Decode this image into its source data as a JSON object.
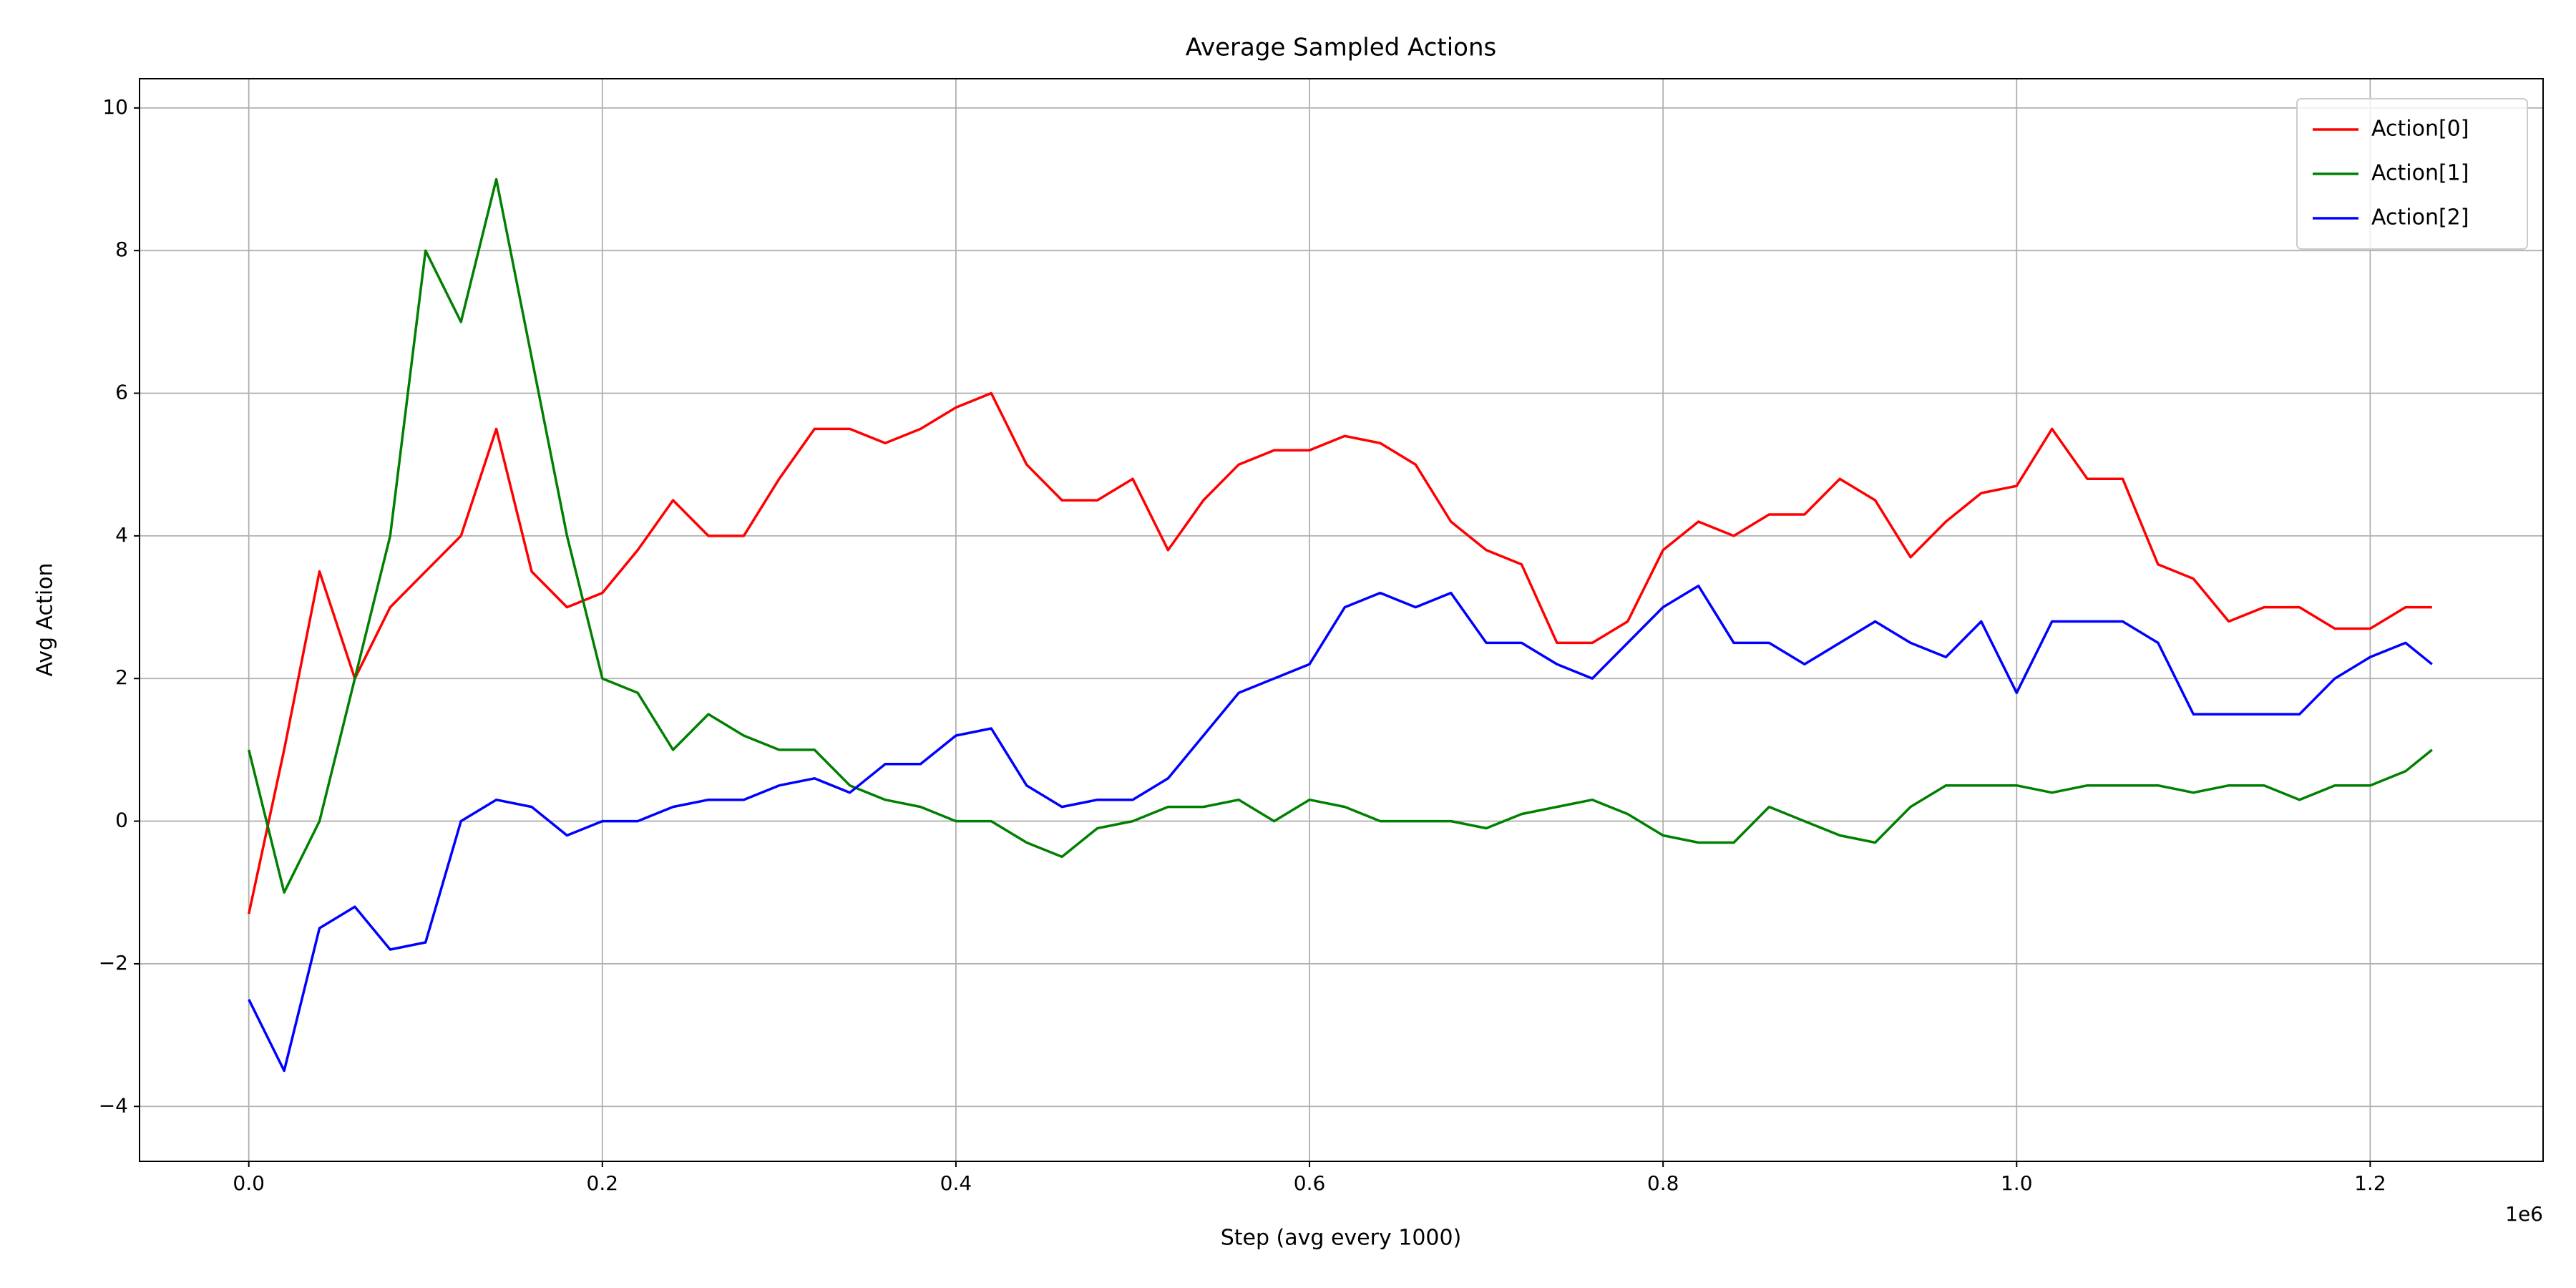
{
  "chart_data": {
    "type": "line",
    "title": "Average Sampled Actions",
    "x_label": "Step (avg every 1000)",
    "y_label": "Avg Action",
    "x_offset_text": "1e6",
    "x": [
      0,
      20000,
      40000,
      60000,
      80000,
      100000,
      120000,
      140000,
      160000,
      180000,
      200000,
      220000,
      240000,
      260000,
      280000,
      300000,
      320000,
      340000,
      360000,
      380000,
      400000,
      420000,
      440000,
      460000,
      480000,
      500000,
      520000,
      540000,
      560000,
      580000,
      600000,
      620000,
      640000,
      660000,
      680000,
      700000,
      720000,
      740000,
      760000,
      780000,
      800000,
      820000,
      840000,
      860000,
      880000,
      900000,
      920000,
      940000,
      960000,
      980000,
      1000000,
      1020000,
      1040000,
      1060000,
      1080000,
      1100000,
      1120000,
      1140000,
      1160000,
      1180000,
      1200000,
      1220000,
      1235000
    ],
    "series": [
      {
        "name": "Action[0]",
        "color": "#ff0000",
        "values": [
          -1.3,
          1.0,
          3.5,
          2.0,
          3.0,
          3.5,
          4.0,
          5.5,
          3.5,
          3.0,
          3.2,
          3.8,
          4.5,
          4.0,
          4.0,
          4.8,
          5.5,
          5.5,
          5.3,
          5.5,
          5.8,
          6.0,
          5.0,
          4.5,
          4.5,
          4.8,
          3.8,
          4.5,
          5.0,
          5.2,
          5.2,
          5.4,
          5.3,
          5.0,
          4.2,
          3.8,
          3.6,
          2.5,
          2.5,
          2.8,
          3.8,
          4.2,
          4.0,
          4.3,
          4.3,
          4.8,
          4.5,
          3.7,
          4.2,
          4.6,
          4.7,
          5.5,
          4.8,
          4.8,
          3.6,
          3.4,
          2.8,
          3.0,
          3.0,
          2.7,
          2.7,
          3.0,
          3.0
        ]
      },
      {
        "name": "Action[1]",
        "color": "#008000",
        "values": [
          1.0,
          -1.0,
          0.0,
          2.0,
          4.0,
          8.0,
          7.0,
          9.0,
          6.5,
          4.0,
          2.0,
          1.8,
          1.0,
          1.5,
          1.2,
          1.0,
          1.0,
          0.5,
          0.3,
          0.2,
          0.0,
          0.0,
          -0.3,
          -0.5,
          -0.1,
          0.0,
          0.2,
          0.2,
          0.3,
          0.0,
          0.3,
          0.2,
          0.0,
          0.0,
          0.0,
          -0.1,
          0.1,
          0.2,
          0.3,
          0.1,
          -0.2,
          -0.3,
          -0.3,
          0.2,
          0.0,
          -0.2,
          -0.3,
          0.2,
          0.5,
          0.5,
          0.5,
          0.4,
          0.5,
          0.5,
          0.5,
          0.4,
          0.5,
          0.5,
          0.3,
          0.5,
          0.5,
          0.7,
          1.0
        ]
      },
      {
        "name": "Action[2]",
        "color": "#0000ff",
        "values": [
          -2.5,
          -3.5,
          -1.5,
          -1.2,
          -1.8,
          -1.7,
          0.0,
          0.3,
          0.2,
          -0.2,
          0.0,
          0.0,
          0.2,
          0.3,
          0.3,
          0.5,
          0.6,
          0.4,
          0.8,
          0.8,
          1.2,
          1.3,
          0.5,
          0.2,
          0.3,
          0.3,
          0.6,
          1.2,
          1.8,
          2.0,
          2.2,
          3.0,
          3.2,
          3.0,
          3.2,
          2.5,
          2.5,
          2.2,
          2.0,
          2.5,
          3.0,
          3.3,
          2.5,
          2.5,
          2.2,
          2.5,
          2.8,
          2.5,
          2.3,
          2.8,
          1.8,
          2.8,
          2.8,
          2.8,
          2.5,
          1.5,
          1.5,
          1.5,
          1.5,
          2.0,
          2.3,
          2.5,
          2.2
        ]
      }
    ],
    "xlim": [
      -61800,
      1297800
    ],
    "ylim": [
      -4.77,
      10.41
    ],
    "xticks": [
      {
        "value": 0,
        "label": "0.0"
      },
      {
        "value": 200000,
        "label": "0.2"
      },
      {
        "value": 400000,
        "label": "0.4"
      },
      {
        "value": 600000,
        "label": "0.6"
      },
      {
        "value": 800000,
        "label": "0.8"
      },
      {
        "value": 1000000,
        "label": "1.0"
      },
      {
        "value": 1200000,
        "label": "1.2"
      }
    ],
    "yticks": [
      {
        "value": -4,
        "label": "−4"
      },
      {
        "value": -2,
        "label": "−2"
      },
      0,
      2,
      4,
      6,
      8,
      10
    ],
    "grid": true,
    "legend": "upper right"
  }
}
